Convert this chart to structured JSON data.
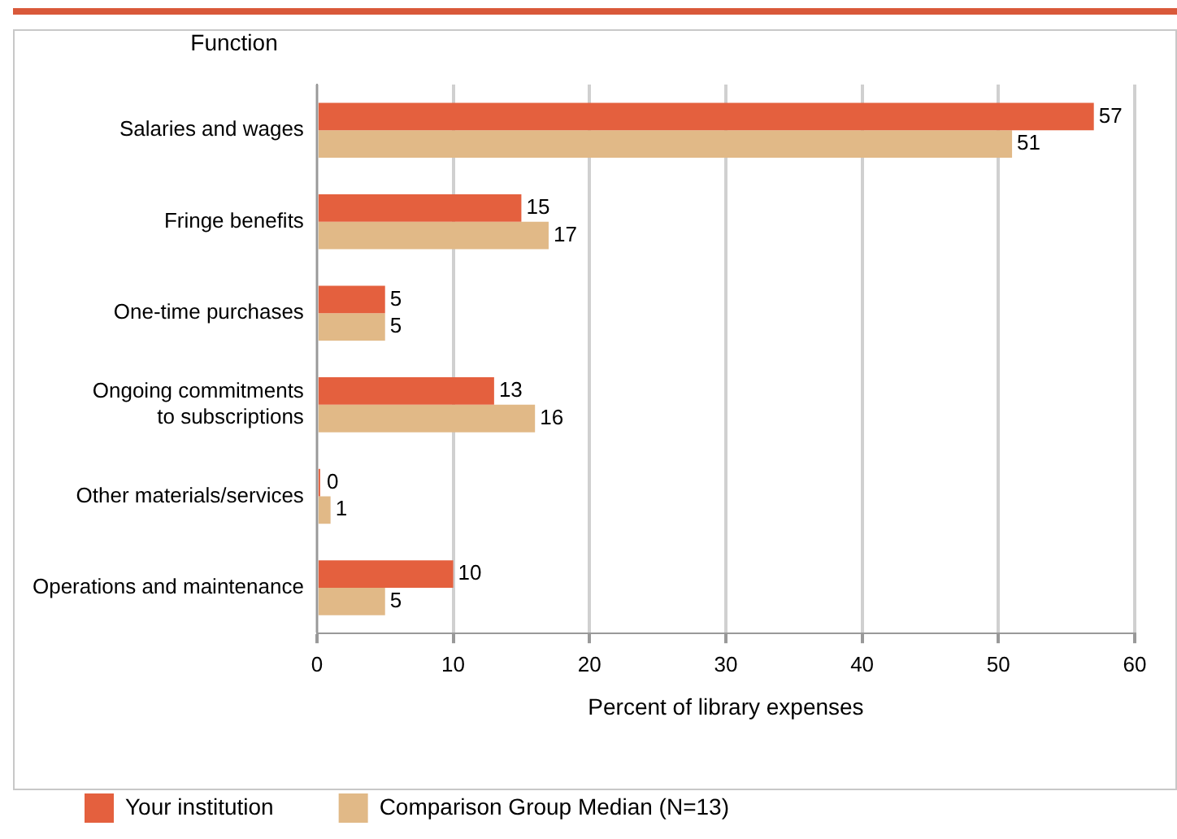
{
  "chart_data": {
    "type": "bar",
    "orientation": "horizontal",
    "ylabel": "Function",
    "xlabel": "Percent of library expenses",
    "categories": [
      "Salaries and wages",
      "Fringe benefits",
      "One-time purchases",
      "Ongoing commitments\nto subscriptions",
      "Other materials/services",
      "Operations and maintenance"
    ],
    "series": [
      {
        "name": "Your institution",
        "color": "#e4603e",
        "values": [
          57,
          15,
          5,
          13,
          0,
          10
        ]
      },
      {
        "name": "Comparison Group Median (N=13)",
        "color": "#e1b987",
        "values": [
          51,
          17,
          5,
          16,
          1,
          5
        ]
      }
    ],
    "xlim": [
      0,
      60
    ],
    "xticks": [
      0,
      10,
      20,
      30,
      40,
      50,
      60
    ],
    "grid": "x",
    "legend": "bottom",
    "data_labels": true
  }
}
